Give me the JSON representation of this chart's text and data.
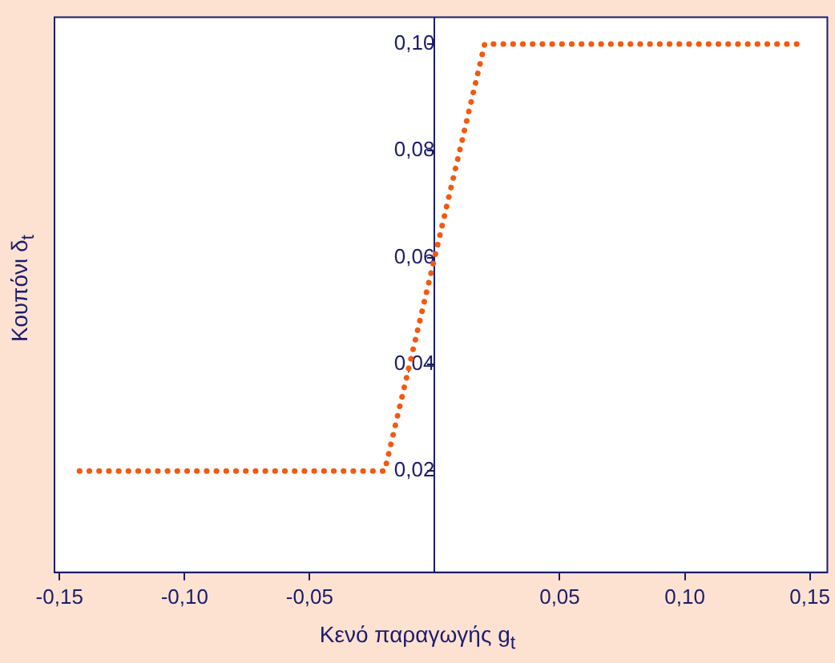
{
  "chart_data": {
    "type": "line",
    "xlabel": "Κενό παραγωγής g$_{t}$",
    "ylabel": "Κουπόνι δ$_{t}$",
    "x": [
      -0.142,
      -0.02,
      0.02,
      0.147
    ],
    "series": [
      {
        "color": "#f25a12",
        "values": [
          0.02,
          0.02,
          0.1,
          0.1
        ]
      }
    ],
    "xlim": [
      -0.152,
      0.157
    ],
    "ylim": [
      0.001,
      0.105
    ],
    "xticks": [
      {
        "value": -0.15,
        "label": "-0,15"
      },
      {
        "value": -0.1,
        "label": "-0,10"
      },
      {
        "value": -0.05,
        "label": "-0,05"
      },
      {
        "value": 0.05,
        "label": "0,05"
      },
      {
        "value": 0.1,
        "label": "0,10"
      },
      {
        "value": 0.15,
        "label": "0,15"
      }
    ],
    "yticks": [
      {
        "value": 0.02,
        "label": "0,02"
      },
      {
        "value": 0.04,
        "label": "0,04"
      },
      {
        "value": 0.06,
        "label": "0,06"
      },
      {
        "value": 0.08,
        "label": "0,08"
      },
      {
        "value": 0.1,
        "label": "0,10"
      }
    ],
    "grid": false,
    "legend": false,
    "marker": "none",
    "line_style": "dotted"
  }
}
